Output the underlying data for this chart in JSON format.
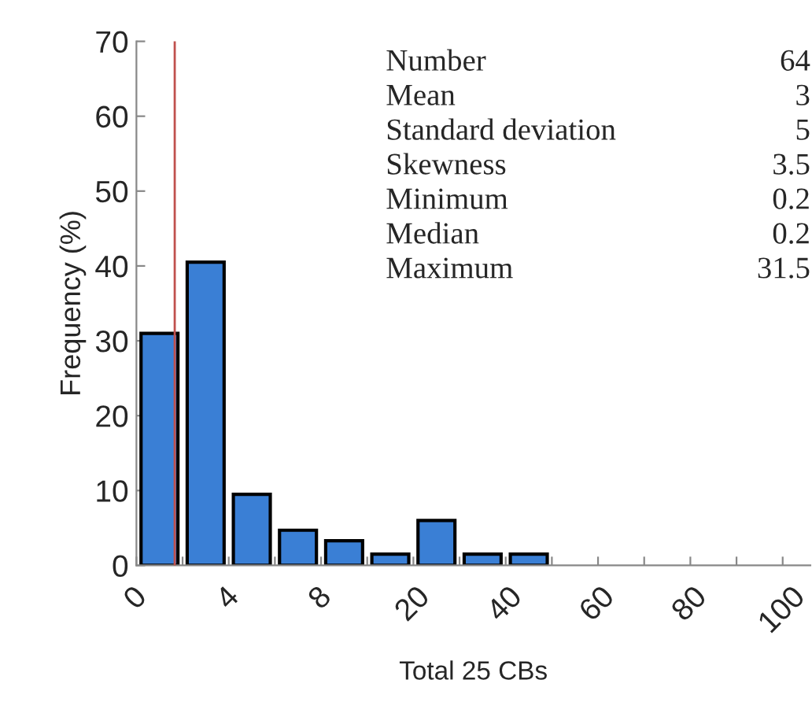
{
  "chart_data": {
    "type": "bar",
    "xlabel": "Total 25 CBs",
    "ylabel": "Frequency (%)",
    "categories": [
      null,
      null,
      null,
      null,
      null,
      null,
      null,
      null,
      null,
      null,
      null,
      null,
      null,
      null
    ],
    "values": [
      31,
      40.5,
      9.5,
      4.7,
      3.3,
      1.5,
      6,
      1.5,
      1.5,
      null,
      null,
      null,
      null,
      null
    ],
    "color": "#3a7fd5",
    "ylim": [
      0,
      70
    ],
    "yticks": [
      0,
      10,
      20,
      30,
      40,
      50,
      60,
      70
    ],
    "annotations": [
      "0",
      "4",
      "8",
      "20",
      "40",
      "60",
      "80",
      "100",
      "Number",
      "64",
      "Mean",
      "3",
      "Standard deviation",
      "5",
      "Skewness",
      "3.5",
      "Minimum",
      "0.2",
      "Median",
      "0.2",
      "Maximum",
      "31.5"
    ],
    "grid": false,
    "legend": false
  }
}
